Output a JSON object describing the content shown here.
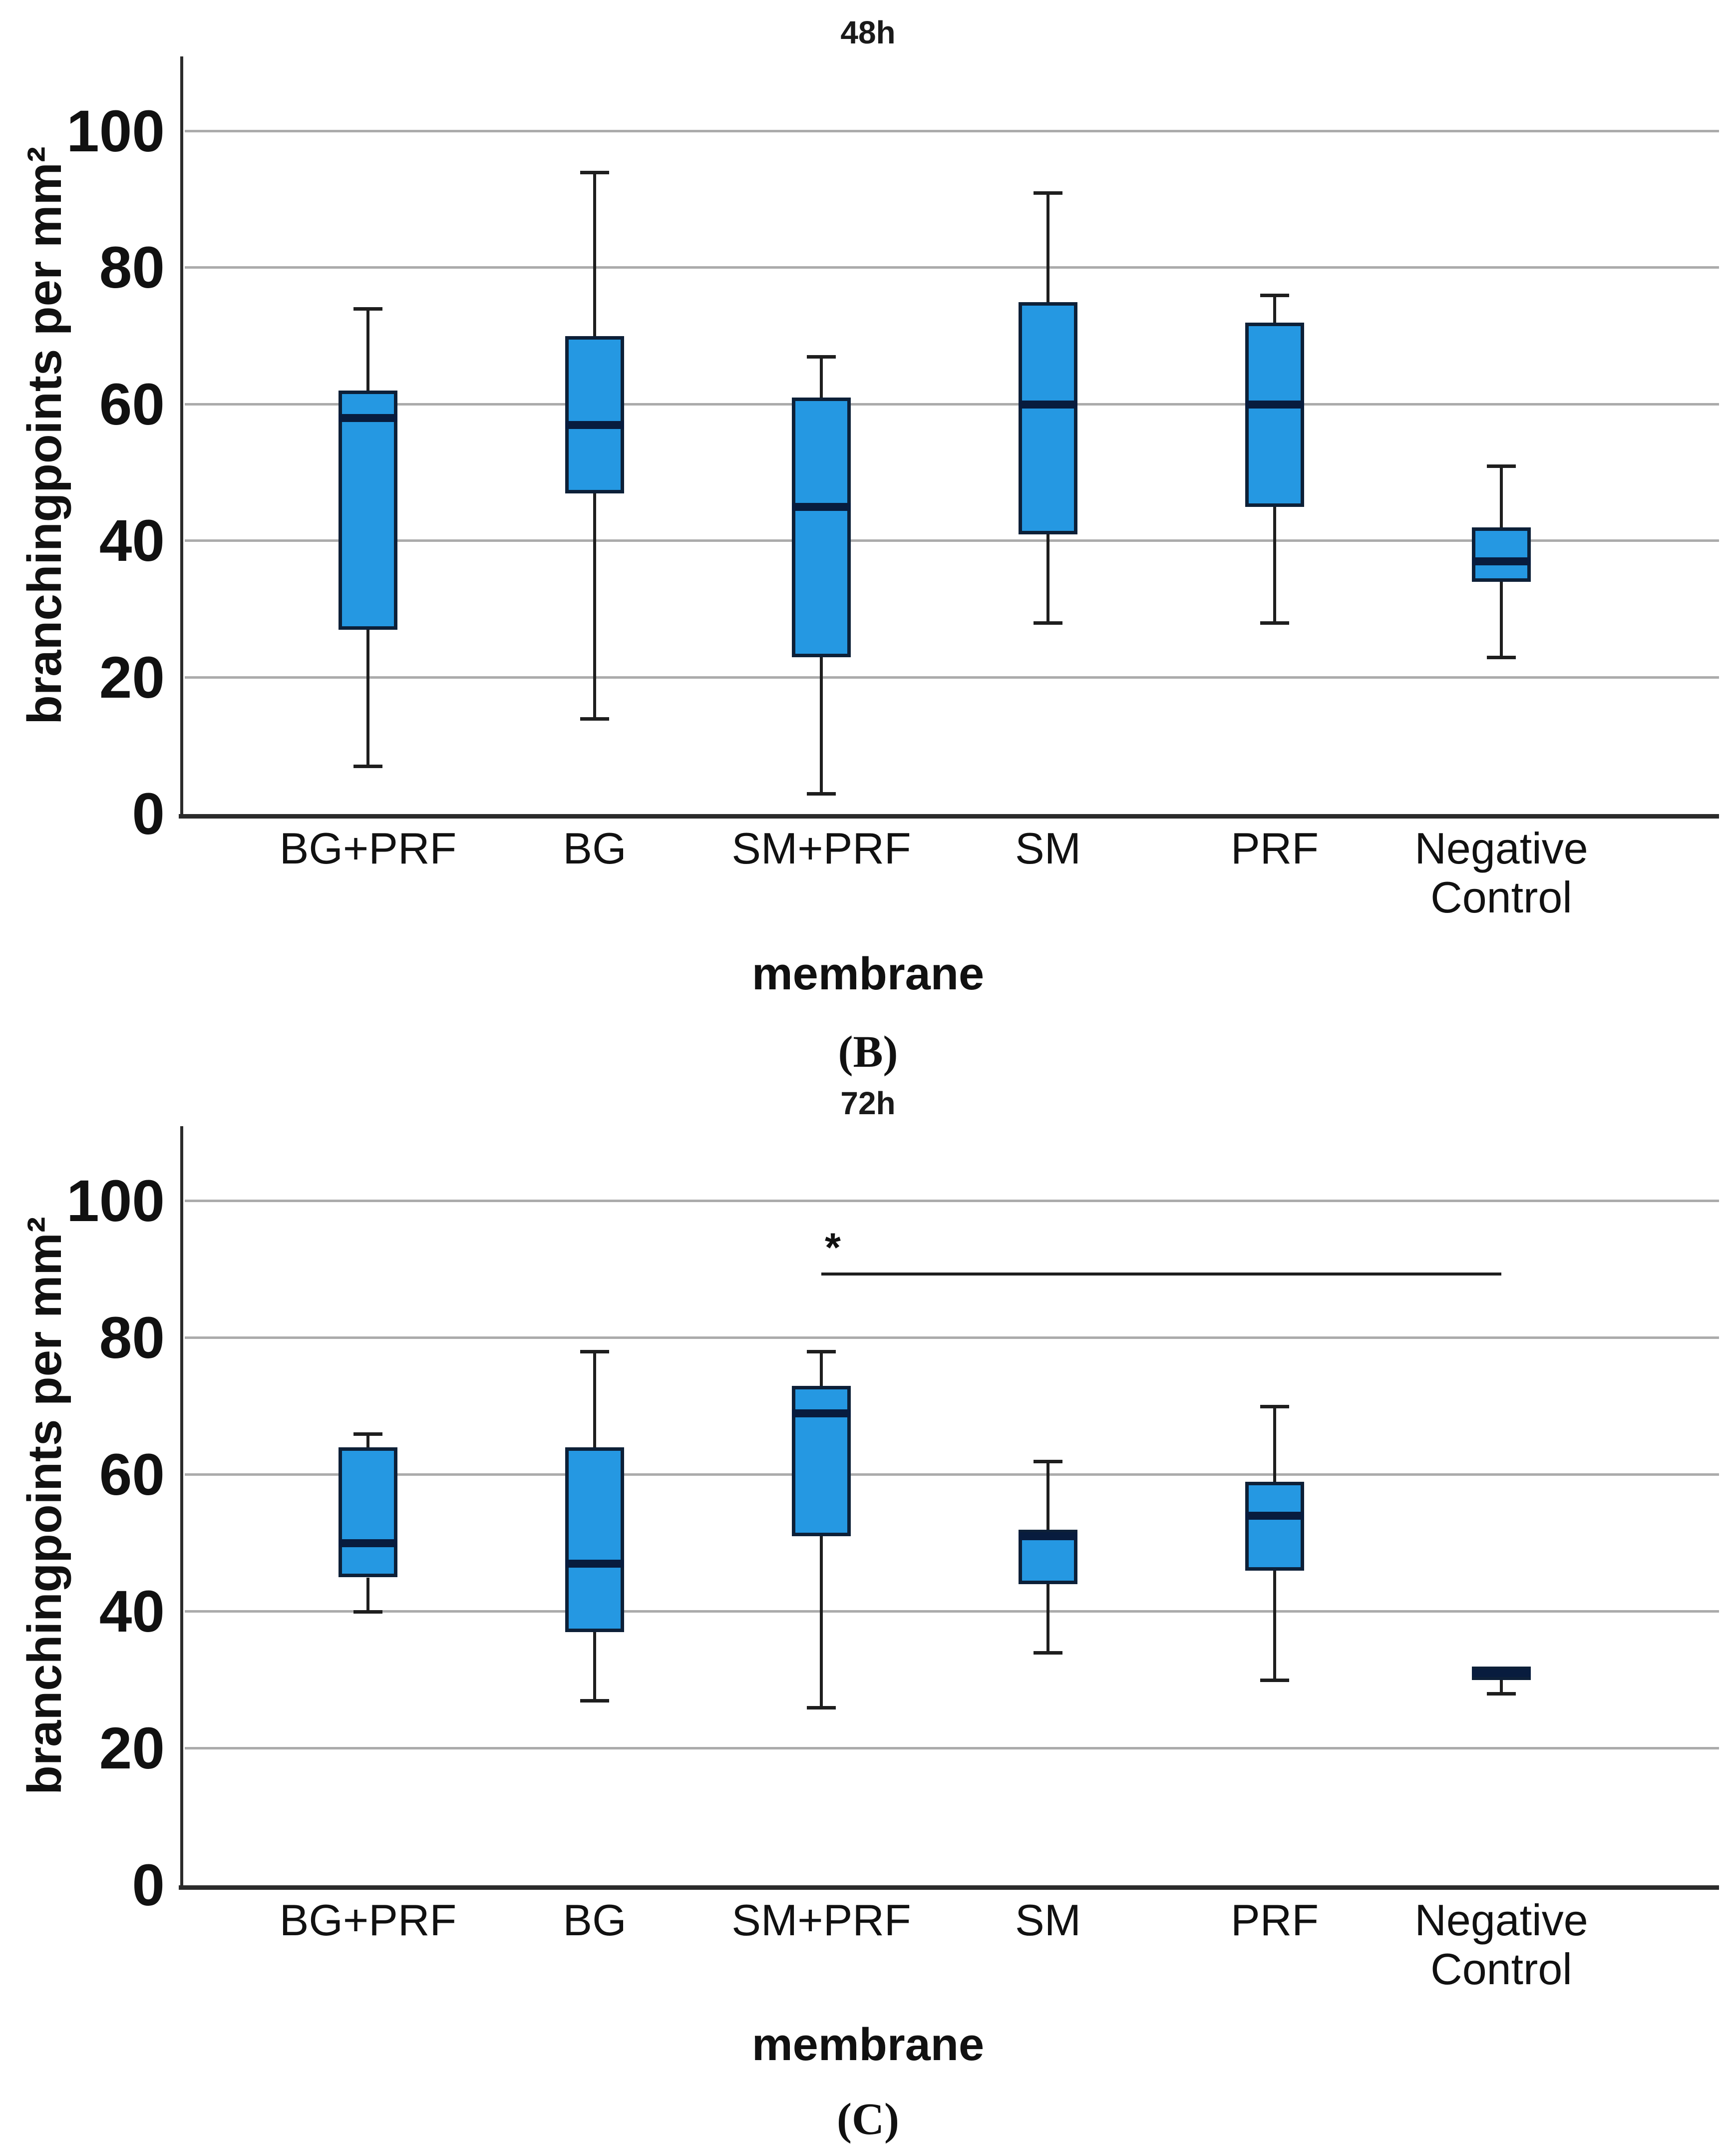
{
  "figure": {
    "background": "#ffffff",
    "box_fill": "#2598E2",
    "box_border": "#0D2038",
    "median_color": "#081C3E",
    "whisker_color": "#1e1e1e",
    "gridline_color": "#ababab",
    "axis_color": "#2b2b2b"
  },
  "chart_data": [
    {
      "type": "boxplot",
      "title": "48h",
      "ylabel": "branchingpoints per mm²",
      "xlabel": "membrane",
      "caption": "(B)",
      "ylim": [
        0,
        112
      ],
      "yticks": [
        0,
        20,
        40,
        60,
        80,
        100
      ],
      "grid": "horizontal",
      "legend": "none",
      "categories": [
        "BG+PRF",
        "BG",
        "SM+PRF",
        "SM",
        "PRF",
        "Negative\nControl"
      ],
      "series": [
        {
          "category": "BG+PRF",
          "whisker_low": 7,
          "q1": 27,
          "median": 58,
          "q3": 62,
          "whisker_high": 74
        },
        {
          "category": "BG",
          "whisker_low": 14,
          "q1": 47,
          "median": 57,
          "q3": 70,
          "whisker_high": 94
        },
        {
          "category": "SM+PRF",
          "whisker_low": 3,
          "q1": 23,
          "median": 45,
          "q3": 61,
          "whisker_high": 67
        },
        {
          "category": "SM",
          "whisker_low": 28,
          "q1": 41,
          "median": 60,
          "q3": 75,
          "whisker_high": 91
        },
        {
          "category": "PRF",
          "whisker_low": 28,
          "q1": 45,
          "median": 60,
          "q3": 72,
          "whisker_high": 76
        },
        {
          "category": "Negative Control",
          "whisker_low": 23,
          "q1": 34,
          "median": 37,
          "q3": 42,
          "whisker_high": 51
        }
      ]
    },
    {
      "type": "boxplot",
      "title": "72h",
      "ylabel": "branchingpoints per mm²",
      "xlabel": "membrane",
      "caption": "(C)",
      "ylim": [
        0,
        112
      ],
      "yticks": [
        0,
        20,
        40,
        60,
        80,
        100
      ],
      "grid": "horizontal",
      "legend": "none",
      "categories": [
        "BG+PRF",
        "BG",
        "SM+PRF",
        "SM",
        "PRF",
        "Negative\nControl"
      ],
      "series": [
        {
          "category": "BG+PRF",
          "whisker_low": 40,
          "q1": 45,
          "median": 50,
          "q3": 64,
          "whisker_high": 66
        },
        {
          "category": "BG",
          "whisker_low": 27,
          "q1": 37,
          "median": 47,
          "q3": 64,
          "whisker_high": 78
        },
        {
          "category": "SM+PRF",
          "whisker_low": 26,
          "q1": 51,
          "median": 69,
          "q3": 73,
          "whisker_high": 78
        },
        {
          "category": "SM",
          "whisker_low": 34,
          "q1": 44,
          "median": 51,
          "q3": 52,
          "whisker_high": 62
        },
        {
          "category": "PRF",
          "whisker_low": 30,
          "q1": 46,
          "median": 54,
          "q3": 59,
          "whisker_high": 70
        },
        {
          "category": "Negative Control",
          "whisker_low": 28,
          "q1": 30,
          "median": 31,
          "q3": 32,
          "whisker_high": 32
        }
      ],
      "annotation": {
        "symbol": "*",
        "from_category": "SM+PRF",
        "to_category": "Negative Control",
        "y_value": 90,
        "meaning": "significance bar"
      }
    }
  ]
}
